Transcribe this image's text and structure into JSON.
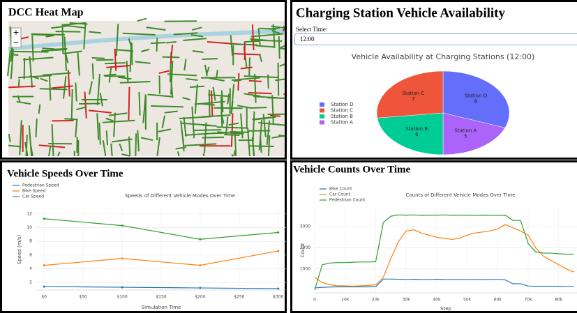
{
  "panels": {
    "map_title": "DCC Heat Map",
    "zoom_in": "+",
    "zoom_out": "−",
    "station_title": "Charging Station Vehicle Availability",
    "select_label": "Select Time:",
    "select_value": "12:00",
    "speeds_title": "Vehicle Speeds Over Time",
    "counts_title": "Vehicle Counts Over Time"
  },
  "chart_data": [
    {
      "type": "pie",
      "title": "Vehicle Availability at Charging Stations (12:00)",
      "categories": [
        "Station D",
        "Station C",
        "Station B",
        "Station A"
      ],
      "values": [
        8,
        7,
        6,
        5
      ],
      "colors": [
        "#636efa",
        "#ef553b",
        "#00cc96",
        "#ab63fa"
      ],
      "legend": "left"
    },
    {
      "type": "line",
      "title": "Speeds of Different Vehicle Modes Over Time",
      "x_label": "Simulation Time",
      "y_label": "Speed (m/s)",
      "x": [
        0,
        100,
        200,
        300
      ],
      "series": [
        {
          "name": "Pedestrian Speed",
          "color": "#1f77b4",
          "values": [
            1.4,
            1.3,
            1.2,
            1.1
          ]
        },
        {
          "name": "Bike Speed",
          "color": "#ff7f0e",
          "values": [
            4.5,
            5.5,
            4.5,
            6.6
          ]
        },
        {
          "name": "Car Speed",
          "color": "#2ca02c",
          "values": [
            11.3,
            10.3,
            8.3,
            9.3
          ]
        }
      ],
      "xlim": [
        -10,
        310
      ],
      "ylim": [
        0.9,
        12.7
      ],
      "xticks": [
        {
          "value": 0,
          "label": "$0"
        },
        {
          "value": 50,
          "label": "$50"
        },
        {
          "value": 100,
          "label": "$100"
        },
        {
          "value": 150,
          "label": "$150"
        },
        {
          "value": 200,
          "label": "$200"
        },
        {
          "value": 250,
          "label": "$250"
        },
        {
          "value": 300,
          "label": "$300"
        }
      ],
      "yticks": [
        2,
        4,
        6,
        8,
        10,
        12
      ],
      "grid": true,
      "markers": true,
      "legend": "upper left"
    },
    {
      "type": "line",
      "title": "Counts of Different Vehicle Modes Over Time",
      "x_label": "Step",
      "y_label": "Count",
      "x": [
        0,
        2500,
        5000,
        7500,
        10000,
        12500,
        15000,
        17500,
        20000,
        22500,
        25000,
        27500,
        30000,
        32500,
        35000,
        37500,
        40000,
        42500,
        45000,
        47500,
        50000,
        52500,
        55000,
        57500,
        60000,
        62500,
        65000,
        67500,
        70000,
        72500,
        75000,
        77500,
        80000,
        82500,
        85000
      ],
      "series": [
        {
          "name": "Bike Count",
          "color": "#1f77b4",
          "values": [
            100,
            130,
            140,
            150,
            150,
            150,
            150,
            150,
            160,
            520,
            520,
            510,
            500,
            510,
            500,
            500,
            510,
            500,
            500,
            500,
            500,
            500,
            490,
            500,
            500,
            480,
            300,
            300,
            190,
            180,
            180,
            180,
            180,
            170,
            170
          ]
        },
        {
          "name": "Car Count",
          "color": "#ff7f0e",
          "values": [
            600,
            350,
            250,
            200,
            200,
            180,
            200,
            220,
            250,
            600,
            1500,
            2300,
            2800,
            2850,
            2700,
            2600,
            2500,
            2450,
            2400,
            2450,
            2600,
            2700,
            2750,
            2800,
            2900,
            3100,
            2950,
            2800,
            2600,
            2000,
            1600,
            1400,
            1200,
            1000,
            850
          ]
        },
        {
          "name": "Pedestrian Count",
          "color": "#2ca02c",
          "values": [
            0,
            1200,
            1280,
            1300,
            1300,
            1320,
            1330,
            1330,
            1340,
            3200,
            3500,
            3560,
            3550,
            3560,
            3540,
            3550,
            3550,
            3560,
            3540,
            3550,
            3550,
            3540,
            3550,
            3540,
            3540,
            3550,
            3300,
            3300,
            2200,
            1800,
            1750,
            1750,
            1720,
            1700,
            1700
          ]
        }
      ],
      "xlim": [
        0,
        86000
      ],
      "ylim": [
        -130,
        3900
      ],
      "xticks": [
        0,
        {
          "value": 10000,
          "label": "10k"
        },
        {
          "value": 20000,
          "label": "20k"
        },
        {
          "value": 30000,
          "label": "30k"
        },
        {
          "value": 40000,
          "label": "40k"
        },
        {
          "value": 50000,
          "label": "50k"
        },
        {
          "value": 60000,
          "label": "60k"
        },
        {
          "value": 70000,
          "label": "70k"
        },
        {
          "value": 80000,
          "label": "80k"
        }
      ],
      "yticks": [
        1000,
        2000,
        3000
      ],
      "grid": true,
      "markers": false,
      "legend": "upper left"
    }
  ]
}
